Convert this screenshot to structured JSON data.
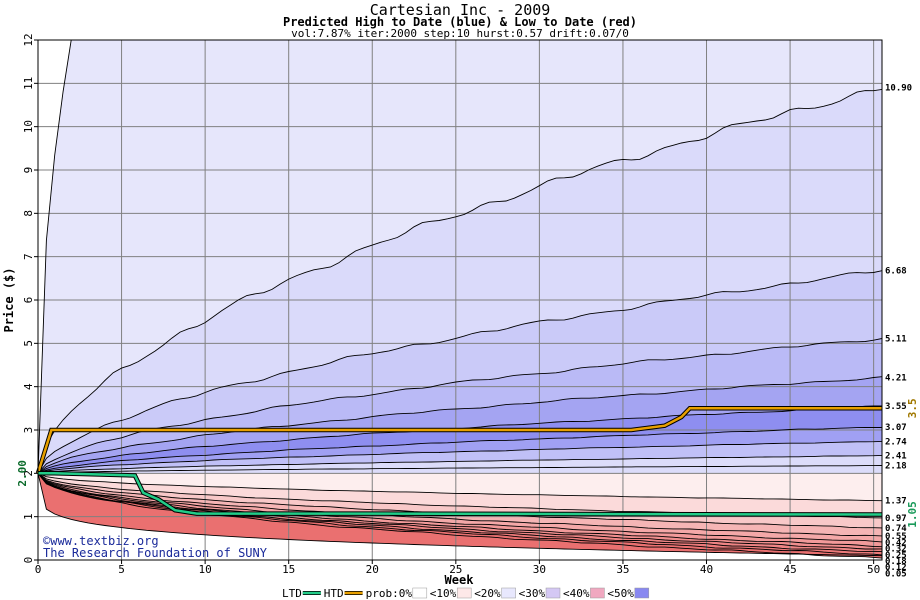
{
  "chart_data": {
    "type": "area",
    "title": "Cartesian Inc - 2009",
    "subtitle": "Predicted High to Date (blue) &  Low to Date (red)",
    "params": "vol:7.87% iter:2000 step:10 hurst:0.57 drift:0.07/0",
    "xlabel": "Week",
    "ylabel": "Price ($)",
    "xlim": [
      0,
      50.5
    ],
    "ylim": [
      0,
      12
    ],
    "x_ticks": [
      "0",
      "5",
      "10",
      "15",
      "20",
      "25",
      "30",
      "35",
      "40",
      "45",
      "50"
    ],
    "y_ticks": [
      "0",
      "1",
      "2",
      "3",
      "4",
      "5",
      "6",
      "7",
      "8",
      "9",
      "10",
      "11",
      "12"
    ],
    "grid": true,
    "start_price": 2.0,
    "start_price_label": "2.00",
    "high_bands_end": [
      10.9,
      6.68,
      5.11,
      4.21,
      3.55,
      3.07,
      2.74,
      2.41,
      2.18
    ],
    "low_bands_end": [
      1.37,
      0.97,
      0.74,
      0.55,
      0.42,
      0.32,
      0.25,
      0.18,
      0.12,
      0.05
    ],
    "right_labels": [
      "10.90",
      "6.68",
      "5.11",
      "4.21",
      "3.55",
      "3.07",
      "2.74",
      "2.41",
      "2.18",
      "1.37",
      "0.97",
      "0.74",
      "0.55",
      "0.42",
      "0.32",
      "0.25",
      "0.18",
      "0.12",
      "0.05"
    ],
    "htd_line": {
      "name": "HTD",
      "color": "#e8a000",
      "x": [
        0,
        0.8,
        35.5,
        37.5,
        38.5,
        39,
        50.5
      ],
      "y": [
        2.0,
        3.0,
        3.0,
        3.1,
        3.3,
        3.5,
        3.5
      ],
      "end_label": "3.5"
    },
    "ltd_line": {
      "name": "LTD",
      "color": "#22cc88",
      "x": [
        0,
        1,
        5.8,
        6.3,
        7.2,
        8.2,
        9.5,
        20,
        35,
        50.5
      ],
      "y": [
        2.0,
        2.0,
        1.95,
        1.55,
        1.4,
        1.15,
        1.07,
        1.07,
        1.06,
        1.05
      ],
      "end_label": "1.05"
    },
    "legend": [
      {
        "label": "LTD",
        "color": "#22cc88",
        "kind": "line"
      },
      {
        "label": "HTD",
        "color": "#e8a000",
        "kind": "line"
      },
      {
        "label": "prob:0%",
        "color": "#ffffff",
        "kind": "box"
      },
      {
        "label": "<10%",
        "color": "#fde8e8",
        "kind": "box"
      },
      {
        "label": "<20%",
        "color": "#e8e8fd",
        "kind": "box"
      },
      {
        "label": "<30%",
        "color": "#d4c8f4",
        "kind": "box"
      },
      {
        "label": "<40%",
        "color": "#f0a8c0",
        "kind": "box"
      },
      {
        "label": "<50%",
        "color": "#8888f0",
        "kind": "box"
      }
    ],
    "credits": [
      "©www.textbiz.org",
      "The Research Foundation of SUNY"
    ]
  },
  "colors": {
    "grid": "#808080",
    "high_fills": [
      "#e6e6fb",
      "#dadafa",
      "#cacaf8",
      "#babaf6",
      "#a4a4f2",
      "#8e8ef0",
      "#a0a0f3",
      "#c0c0f7",
      "#dcdcfa"
    ],
    "low_fills": [
      "#fdeeee",
      "#fbdada",
      "#f8c8c8",
      "#f5b5b5",
      "#f4a8a8",
      "#f29a9a",
      "#f08e8e",
      "#ee8484",
      "#ec7a7a",
      "#ea7070"
    ]
  }
}
